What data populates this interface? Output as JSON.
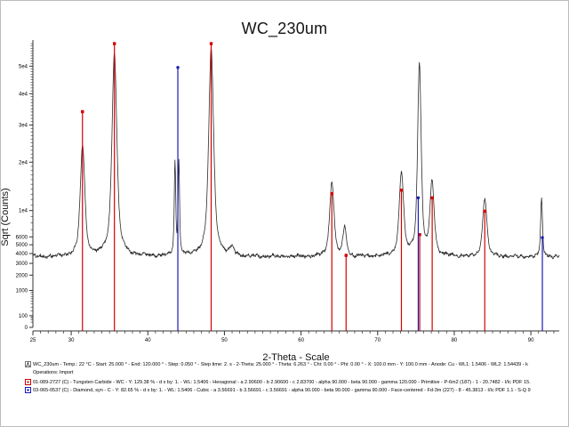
{
  "chart_data": {
    "type": "line",
    "title": "WC_230um",
    "xlabel": "2-Theta - Scale",
    "ylabel": "Sqrt (Counts)",
    "x_min": 25,
    "x_max": 93.7,
    "y_scale": "sqrt",
    "y_top": 60500,
    "grid": false,
    "x_major_ticks": [
      25,
      30,
      40,
      50,
      60,
      70,
      80,
      90
    ],
    "y_ticks": [
      {
        "label": "0",
        "value": 0
      },
      {
        "label": "100",
        "value": 100
      },
      {
        "label": "1000",
        "value": 1000
      },
      {
        "label": "2000",
        "value": 2000
      },
      {
        "label": "3000",
        "value": 3000
      },
      {
        "label": "4000",
        "value": 4000
      },
      {
        "label": "5000",
        "value": 5000
      },
      {
        "label": "6000",
        "value": 6000
      },
      {
        "label": "1e4",
        "value": 10000
      },
      {
        "label": "2e4",
        "value": 20000
      },
      {
        "label": "3e4",
        "value": 30000
      },
      {
        "label": "4e4",
        "value": 40000
      },
      {
        "label": "5e4",
        "value": 50000
      }
    ],
    "scan": {
      "name": "WC_230um",
      "color": "#2b2b2b",
      "baseline_counts": 3650,
      "noise_counts": 150,
      "peaks": [
        {
          "two_theta": 31.48,
          "amplitude": 20400,
          "hwhm": 0.3
        },
        {
          "two_theta": 35.64,
          "amplitude": 51400,
          "hwhm": 0.3
        },
        {
          "two_theta": 43.55,
          "amplitude": 16400,
          "hwhm": 0.1
        },
        {
          "two_theta": 44.05,
          "amplitude": 16400,
          "hwhm": 0.1
        },
        {
          "two_theta": 48.27,
          "amplitude": 53400,
          "hwhm": 0.3
        },
        {
          "two_theta": 51.0,
          "amplitude": 900,
          "hwhm": 0.3
        },
        {
          "two_theta": 64.02,
          "amplitude": 11700,
          "hwhm": 0.3
        },
        {
          "two_theta": 65.7,
          "amplitude": 3800,
          "hwhm": 0.24
        },
        {
          "two_theta": 73.1,
          "amplitude": 13800,
          "hwhm": 0.3
        },
        {
          "two_theta": 75.45,
          "amplitude": 47400,
          "hwhm": 0.22
        },
        {
          "two_theta": 77.1,
          "amplitude": 11900,
          "hwhm": 0.28
        },
        {
          "two_theta": 83.98,
          "amplitude": 8500,
          "hwhm": 0.3
        },
        {
          "two_theta": 91.4,
          "amplitude": 8400,
          "hwhm": 0.13
        }
      ]
    },
    "references": [
      {
        "id": "01-089-2727",
        "name": "Tungsten Carbide",
        "color": "#d40000",
        "marker": "square",
        "sticks": [
          [
            31.47,
            34100
          ],
          [
            35.64,
            59000
          ],
          [
            48.27,
            59000
          ],
          [
            64.02,
            13100
          ],
          [
            65.88,
            3800
          ],
          [
            73.1,
            13800
          ],
          [
            75.49,
            6300
          ],
          [
            77.12,
            12300
          ],
          [
            83.98,
            9900
          ]
        ]
      },
      {
        "id": "03-065-0537",
        "name": "Diamond, syn",
        "color": "#1a1ab8",
        "marker": "circle",
        "sticks": [
          [
            43.92,
            49500
          ],
          [
            75.3,
            12300
          ],
          [
            91.5,
            5900
          ]
        ]
      }
    ]
  },
  "legend": {
    "scan_line": "WC_230um - Temp.: 22 °C - Start: 25.000 ° - End: 120.000 ° - Step: 0.050 ° - Step time: 2. s - 2-Theta: 25.000 ° - Theta: 6.263 ° - Chi: 0.00 ° - Phi: 0.00 ° - X: 100.0 mm - Y: 100.0 mm - Anode: Cu - WL1: 1.5406 - WL2: 1.54439 - k",
    "operations_line": "Operations: Import",
    "ref1_line": "01-089-2727 (C) - Tungsten Carbide - WC - Y: 129.38 % - d x by: 1. - WL: 1.5406 - Hexagonal - a 2.90600 - b 2.90600 - c 2.83700 - alpha 90.000 - beta 90.000 - gamma 120.000 - Primitive - P-6m2 (187) - 1 - 20.7482 - I/Ic PDF 15.",
    "ref2_line": "03-065-0537 (C) - Diamond, syn - C - Y: 82.65 % - d x by: 1. - WL: 1.5406 - Cubic - a 3.56691 - b 3.56691 - c 3.56691 - alpha 90.000 - beta 90.000 - gamma 90.000 - Face-centered - Fd-3m (227) - 8 - 45.3813 - I/Ic PDF 1.1 - S-Q 9"
  }
}
